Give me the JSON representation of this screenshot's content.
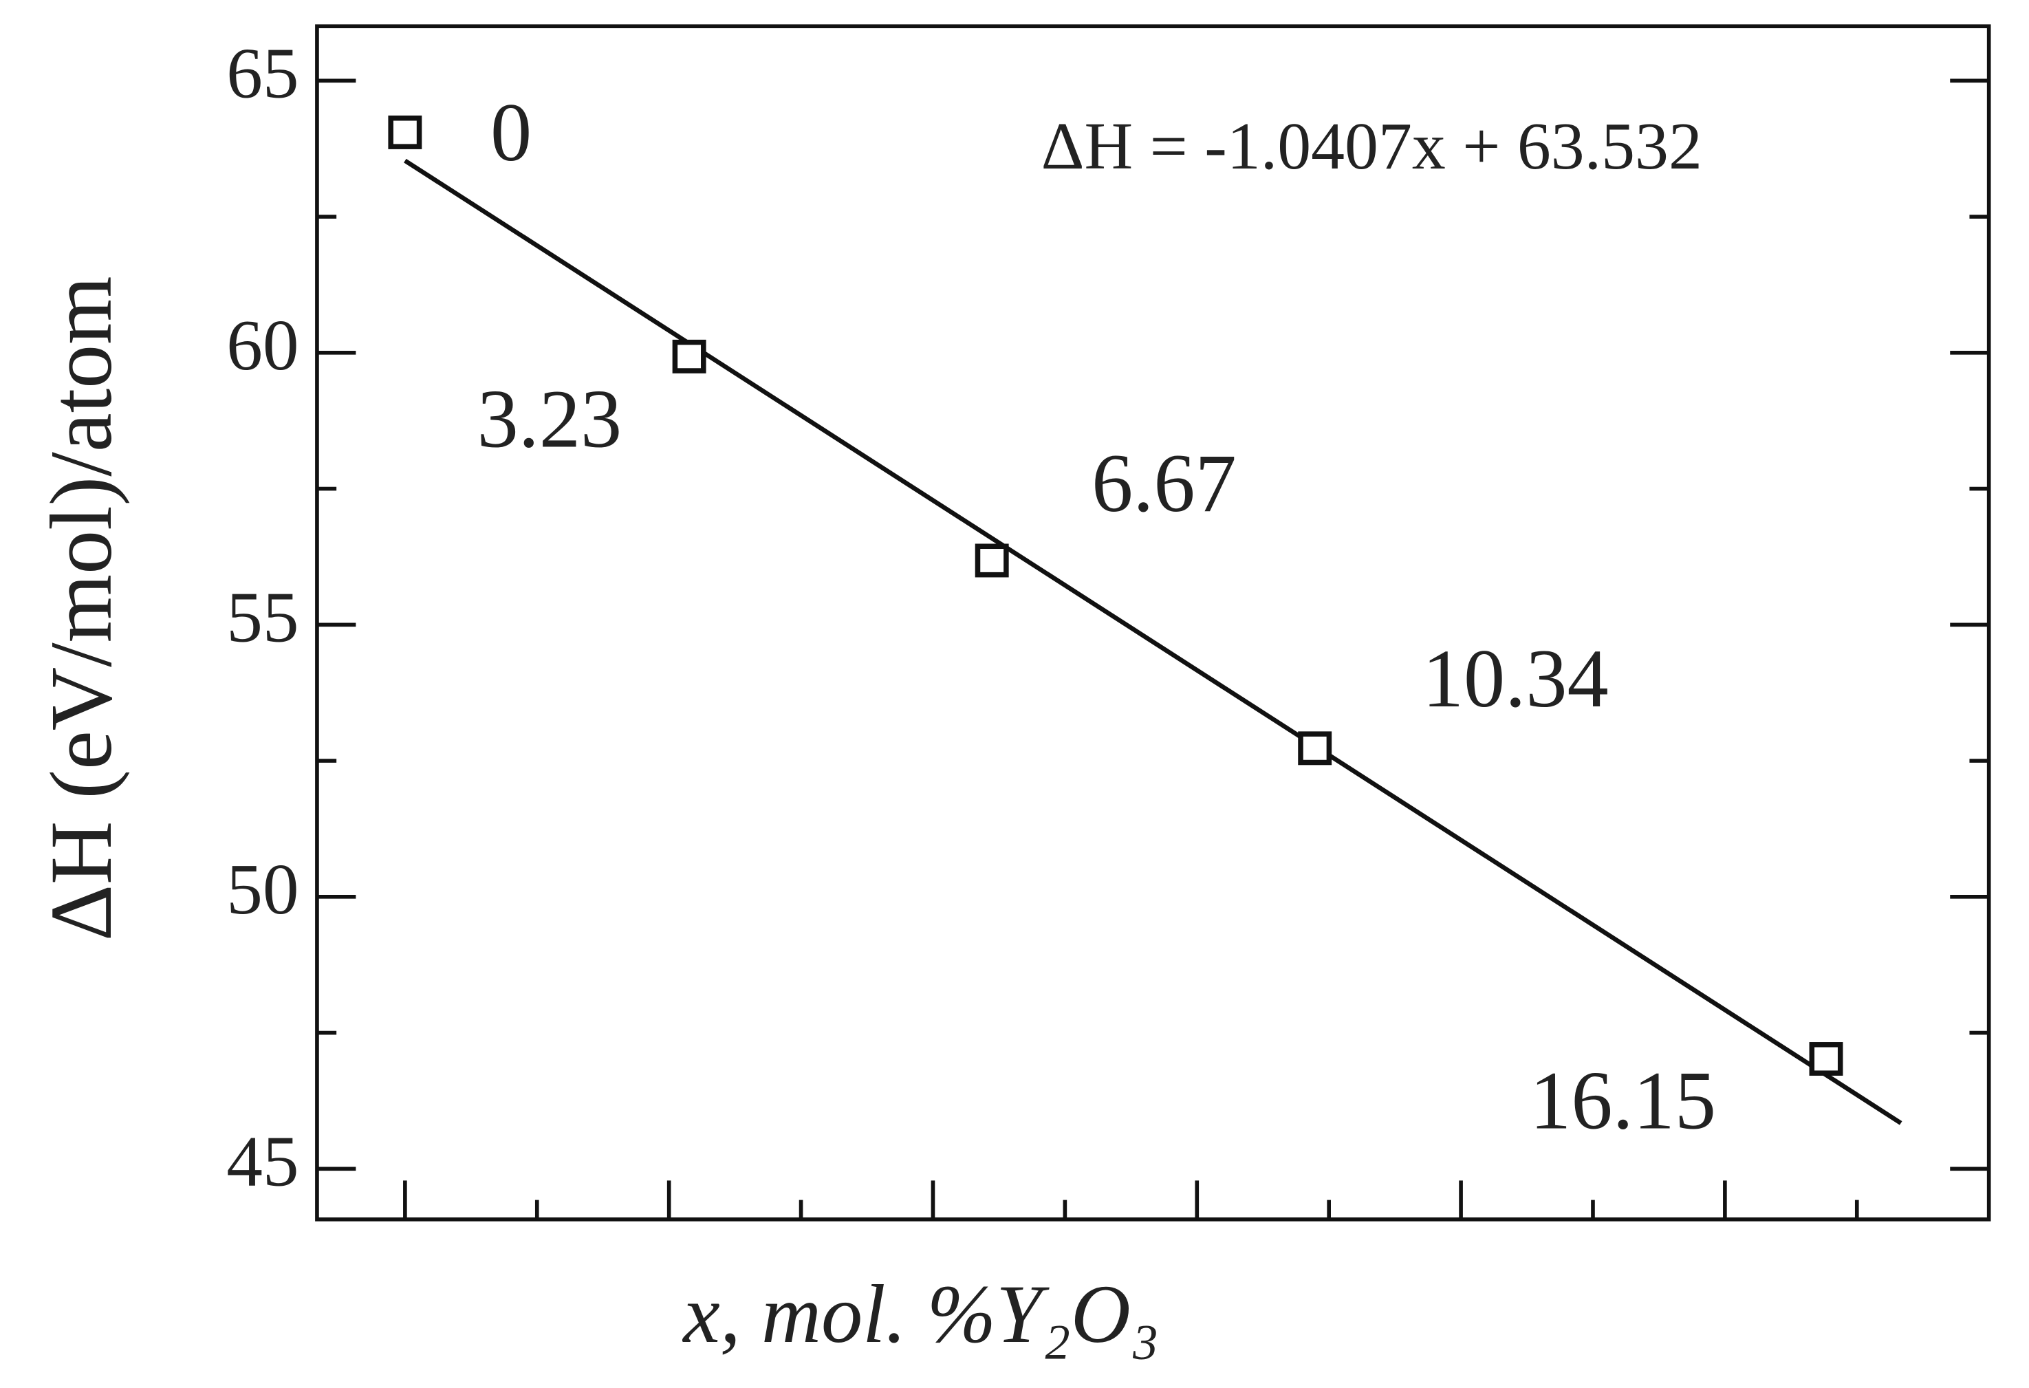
{
  "chart_data": {
    "type": "scatter",
    "ylabel": "ΔH (eV/mol)/atom",
    "xlabel": "x, mol. %Y₂O₃",
    "annotation": "ΔH = -1.0407x + 63.532",
    "x": [
      0,
      3.23,
      6.67,
      10.34,
      16.15
    ],
    "values": [
      64.05,
      59.93,
      56.18,
      52.73,
      47.02
    ],
    "color": "#111111",
    "fit_line": {
      "x": [
        0,
        17
      ],
      "values": [
        63.53,
        45.84
      ]
    },
    "xlim": [
      -1,
      18
    ],
    "ylim": [
      44.07,
      66
    ],
    "xticks_major": [
      0,
      3,
      6,
      9,
      12,
      15
    ],
    "xticks_minor": [
      1.5,
      4.5,
      7.5,
      10.5,
      13.5,
      16.5
    ],
    "yticks": [
      45,
      50,
      55,
      60,
      65
    ],
    "yticks_minor": [
      47.5,
      52.5,
      57.5,
      62.5
    ]
  }
}
